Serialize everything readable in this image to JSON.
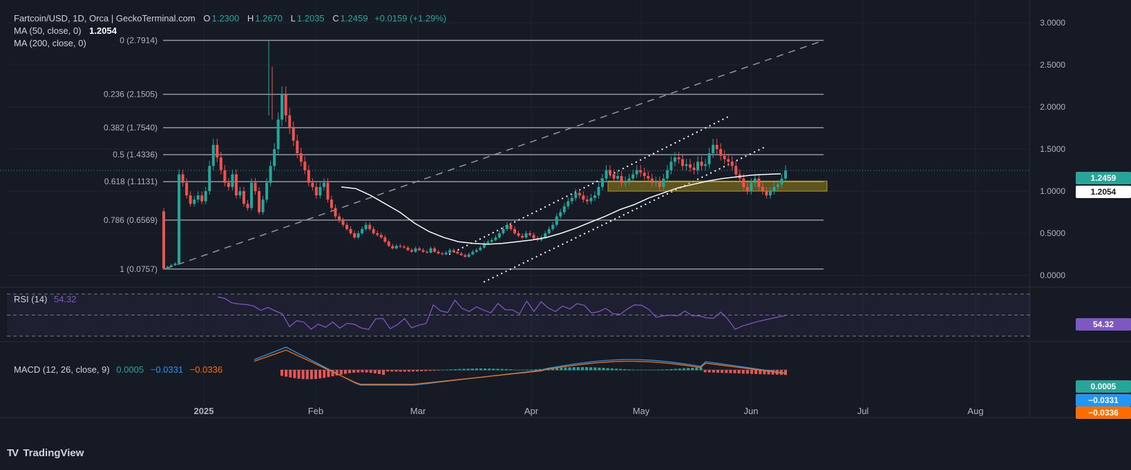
{
  "header": {
    "symbol": "Fartcoin/USD, 1D, Orca | GeckoTerminal.com",
    "o_label": "O",
    "o": "1.2300",
    "h_label": "H",
    "h": "1.2670",
    "l_label": "L",
    "l": "1.2035",
    "c_label": "C",
    "c": "1.2459",
    "chg": "+0.0159 (+1.29%)",
    "ma50_label": "MA (50, close, 0)",
    "ma50": "1.2054",
    "ma200_label": "MA (200, close, 0)"
  },
  "colors": {
    "up": "#26a69a",
    "down": "#ef5350",
    "bg": "#161a25",
    "ma": "#ffffff",
    "rsi": "#7e57c2",
    "macd": "#2196f3",
    "signal": "#ff6d00",
    "zone": "#b59b1a"
  },
  "price_axis_labels": [
    "3.0000",
    "2.5000",
    "2.0000",
    "1.5000",
    "1.0000",
    "0.5000",
    "0.0000"
  ],
  "badges": {
    "price": "1.2459",
    "ma": "1.2054",
    "rsi": "54.32",
    "macd_hist": "0.0005",
    "macd": "−0.0331",
    "macd_signal": "−0.0336"
  },
  "rsi_legend": {
    "label": "RSI (14)",
    "value": "54.32"
  },
  "macd_legend": {
    "label": "MACD (12, 26, close, 9)",
    "hist": "0.0005",
    "macd": "−0.0331",
    "signal": "−0.0336"
  },
  "time_axis": [
    "2025",
    "Feb",
    "Mar",
    "Apr",
    "May",
    "Jun",
    "Jul",
    "Aug"
  ],
  "brand": "TradingView",
  "chart_data": {
    "type": "candlestick",
    "title": "Fartcoin/USD, 1D, Orca | GeckoTerminal.com",
    "ylim": [
      -0.05,
      3.1
    ],
    "fib_levels": [
      {
        "label": "0 (2.7914)",
        "value": 2.7914
      },
      {
        "label": "0.236 (2.1505)",
        "value": 2.1505
      },
      {
        "label": "0.382 (1.7540)",
        "value": 1.754
      },
      {
        "label": "0.5 (1.4336)",
        "value": 1.4336
      },
      {
        "label": "0.618 (1.1131)",
        "value": 1.1131
      },
      {
        "label": "0.786 (0.6569)",
        "value": 0.6569
      },
      {
        "label": "1 (0.0757)",
        "value": 0.0757
      }
    ],
    "support_zone": [
      1.0,
      1.12
    ],
    "close_series": [
      0.08,
      0.1,
      0.12,
      0.14,
      1.2,
      1.1,
      0.95,
      0.85,
      0.9,
      0.95,
      0.88,
      1.0,
      1.3,
      1.55,
      1.4,
      1.25,
      1.1,
      1.05,
      1.2,
      0.95,
      1.0,
      0.85,
      0.8,
      1.1,
      1.0,
      0.75,
      0.9,
      1.1,
      1.3,
      1.5,
      1.85,
      2.15,
      1.9,
      1.75,
      1.6,
      1.45,
      1.35,
      1.25,
      1.1,
      1.05,
      0.95,
      1.05,
      1.1,
      0.9,
      0.8,
      0.7,
      0.65,
      0.6,
      0.55,
      0.5,
      0.45,
      0.5,
      0.55,
      0.6,
      0.55,
      0.5,
      0.48,
      0.45,
      0.4,
      0.35,
      0.32,
      0.35,
      0.34,
      0.33,
      0.3,
      0.28,
      0.32,
      0.3,
      0.28,
      0.27,
      0.32,
      0.28,
      0.26,
      0.25,
      0.27,
      0.3,
      0.28,
      0.26,
      0.24,
      0.22,
      0.25,
      0.28,
      0.3,
      0.33,
      0.38,
      0.4,
      0.42,
      0.45,
      0.5,
      0.55,
      0.6,
      0.55,
      0.5,
      0.47,
      0.45,
      0.5,
      0.48,
      0.44,
      0.42,
      0.45,
      0.5,
      0.55,
      0.6,
      0.7,
      0.75,
      0.82,
      0.88,
      0.92,
      0.98,
      0.95,
      0.9,
      0.88,
      0.92,
      0.95,
      1.05,
      1.15,
      1.25,
      1.2,
      1.15,
      1.18,
      1.1,
      1.12,
      1.15,
      1.2,
      1.25,
      1.22,
      1.18,
      1.15,
      1.1,
      1.12,
      1.05,
      1.15,
      1.25,
      1.35,
      1.4,
      1.38,
      1.3,
      1.32,
      1.28,
      1.25,
      1.35,
      1.3,
      1.32,
      1.45,
      1.55,
      1.5,
      1.42,
      1.38,
      1.35,
      1.3,
      1.2,
      1.15,
      1.05,
      1.0,
      1.1,
      1.15,
      1.05,
      1.0,
      0.95,
      1.0,
      1.05,
      1.08,
      1.15,
      1.2459
    ],
    "ma50": [
      1.05,
      1.03,
      0.95,
      0.85,
      0.75,
      0.62,
      0.52,
      0.45,
      0.4,
      0.38,
      0.37,
      0.38,
      0.4,
      0.42,
      0.45,
      0.5,
      0.56,
      0.63,
      0.7,
      0.78,
      0.84,
      0.92,
      0.98,
      1.04,
      1.08,
      1.12,
      1.15,
      1.17,
      1.19,
      1.2,
      1.2054
    ],
    "rsi": {
      "label": "RSI (14)",
      "value": 54.32,
      "upper": 70,
      "middle": 50,
      "lower": 30
    },
    "macd": {
      "label": "MACD (12, 26, close, 9)",
      "histogram": 0.0005,
      "macd": -0.0331,
      "signal": -0.0336
    }
  }
}
